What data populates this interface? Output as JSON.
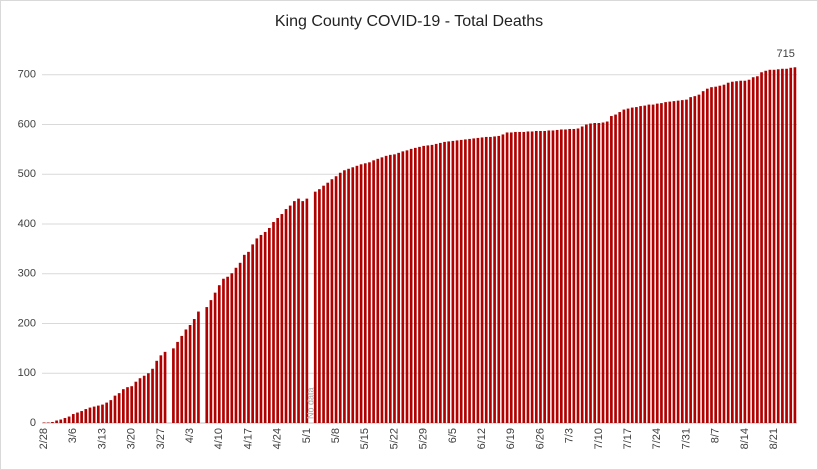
{
  "chart_data": {
    "type": "bar",
    "title": "King County COVID-19 - Total Deaths",
    "annotation": "No data",
    "categories": [
      "2/28",
      null,
      null,
      null,
      null,
      null,
      null,
      "3/6",
      null,
      null,
      null,
      null,
      null,
      null,
      "3/13",
      null,
      null,
      null,
      null,
      null,
      null,
      "3/20",
      null,
      null,
      null,
      null,
      null,
      null,
      "3/27",
      null,
      null,
      null,
      null,
      null,
      null,
      "4/3",
      null,
      null,
      null,
      null,
      null,
      null,
      "4/10",
      null,
      null,
      null,
      null,
      null,
      null,
      "4/17",
      null,
      null,
      null,
      null,
      null,
      null,
      "4/24",
      null,
      null,
      null,
      null,
      null,
      null,
      "5/1",
      null,
      null,
      null,
      null,
      null,
      null,
      "5/8",
      null,
      null,
      null,
      null,
      null,
      null,
      "5/15",
      null,
      null,
      null,
      null,
      null,
      null,
      "5/22",
      null,
      null,
      null,
      null,
      null,
      null,
      "5/29",
      null,
      null,
      null,
      null,
      null,
      null,
      "6/5",
      null,
      null,
      null,
      null,
      null,
      null,
      "6/12",
      null,
      null,
      null,
      null,
      null,
      null,
      "6/19",
      null,
      null,
      null,
      null,
      null,
      null,
      "6/26",
      null,
      null,
      null,
      null,
      null,
      null,
      "7/3",
      null,
      null,
      null,
      null,
      null,
      null,
      "7/10",
      null,
      null,
      null,
      null,
      null,
      null,
      "7/17",
      null,
      null,
      null,
      null,
      null,
      null,
      "7/24",
      null,
      null,
      null,
      null,
      null,
      null,
      "7/31",
      null,
      null,
      null,
      null,
      null,
      null,
      "8/7",
      null,
      null,
      null,
      null,
      null,
      null,
      "8/14",
      null,
      null,
      null,
      null,
      null,
      null,
      "8/21",
      null,
      null,
      null,
      null,
      null
    ],
    "values": [
      1,
      1,
      2,
      5,
      7,
      10,
      13,
      18,
      21,
      24,
      28,
      31,
      33,
      35,
      37,
      41,
      46,
      55,
      60,
      68,
      72,
      74,
      83,
      90,
      95,
      100,
      109,
      125,
      136,
      143,
      null,
      150,
      163,
      175,
      188,
      197,
      209,
      224,
      null,
      233,
      247,
      262,
      277,
      290,
      294,
      301,
      312,
      322,
      338,
      344,
      359,
      371,
      378,
      384,
      392,
      404,
      412,
      420,
      430,
      437,
      446,
      451,
      446,
      451,
      null,
      465,
      470,
      477,
      483,
      490,
      496,
      503,
      508,
      511,
      514,
      517,
      520,
      522,
      524,
      528,
      531,
      534,
      537,
      539,
      540,
      543,
      546,
      548,
      551,
      553,
      555,
      557,
      558,
      559,
      561,
      563,
      565,
      566,
      567,
      568,
      569,
      570,
      571,
      572,
      573,
      574,
      575,
      575,
      576,
      577,
      580,
      584,
      584,
      585,
      585,
      585,
      586,
      586,
      587,
      587,
      587,
      588,
      588,
      589,
      590,
      590,
      591,
      591,
      592,
      596,
      600,
      602,
      603,
      603,
      604,
      606,
      617,
      620,
      625,
      630,
      632,
      634,
      635,
      637,
      638,
      640,
      640,
      642,
      643,
      645,
      646,
      647,
      648,
      649,
      650,
      655,
      657,
      660,
      667,
      672,
      675,
      676,
      678,
      680,
      684,
      686,
      687,
      688,
      688,
      690,
      695,
      697,
      705,
      708,
      710,
      710,
      711,
      712,
      712,
      714,
      715
    ],
    "color": "#b00000",
    "ylim": [
      0,
      800
    ],
    "yticks": [
      0,
      100,
      200,
      300,
      400,
      500,
      600,
      700
    ],
    "grid": true
  }
}
